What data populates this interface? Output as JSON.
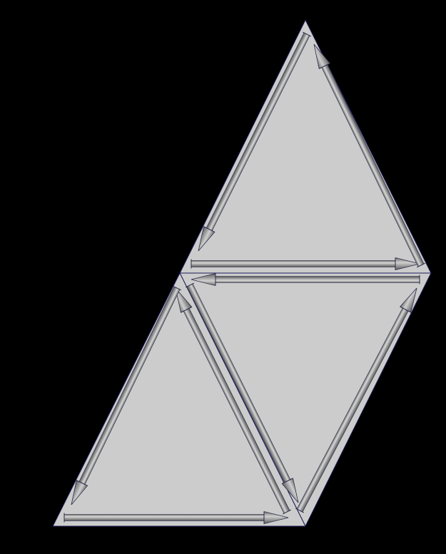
{
  "colors": {
    "background": "#000000",
    "face_fill": "#cccccc",
    "face_stroke": "#1c1c5a",
    "arrow_light": "#d9d9d9",
    "arrow_mid": "#9a9a9a",
    "arrow_dark": "#6e6e6e",
    "arrow_outline": "#2a2a4a"
  },
  "diagram": {
    "type": "triangulated-mesh-with-directed-half-edges",
    "faces": [
      {
        "name": "top-triangle"
      },
      {
        "name": "right-middle-triangle"
      },
      {
        "name": "bottom-left-triangle"
      }
    ],
    "half_edge_count": 9,
    "arrow_style": "shaded-cylinder-with-cone-head"
  }
}
